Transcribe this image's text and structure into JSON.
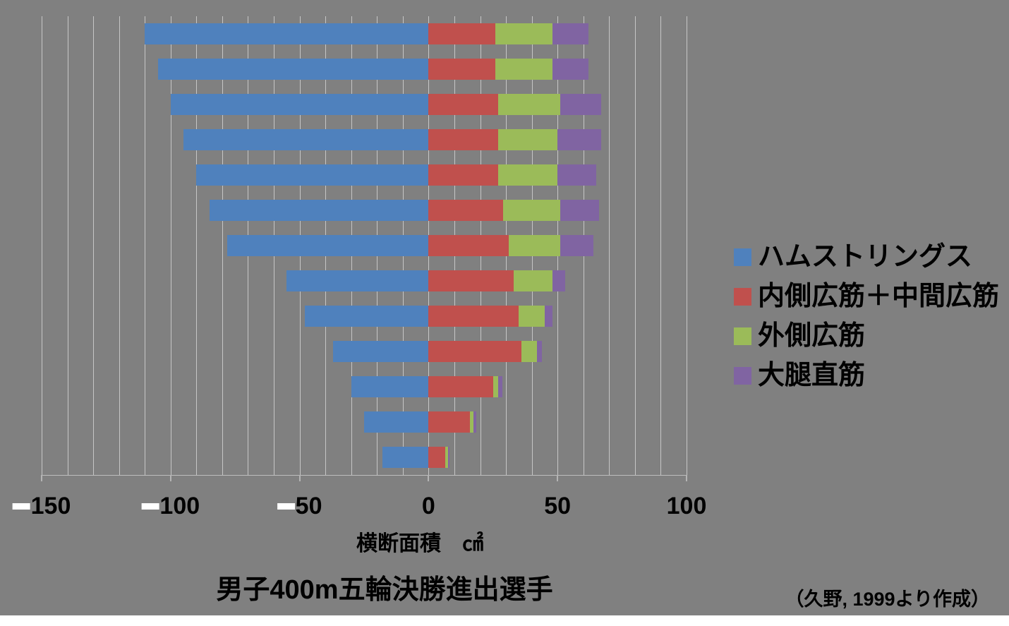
{
  "page": {
    "background_color": "#808080",
    "footer_band_color": "#ffffff",
    "gridline_color": "rgba(255,255,255,0.55)"
  },
  "chart_data": {
    "type": "bar",
    "orientation": "horizontal",
    "stacked": true,
    "diverging": true,
    "xlabel": "横断面積　㎠",
    "caption": "男子400m五輪決勝進出選手",
    "source": "（久野, 1999より作成）",
    "xlim": [
      -150,
      100
    ],
    "x_ticks": [
      -150,
      -100,
      -50,
      0,
      50,
      100
    ],
    "x_tick_labels": [
      "-150",
      "-100",
      "-50",
      "0",
      "50",
      "100"
    ],
    "gridline_step": 10,
    "grid": "on",
    "legend_position": "right",
    "n_rows": 13,
    "series": [
      {
        "name": "ハムストリングス",
        "color": "#4F81BD",
        "side": "negative",
        "values": [
          -110,
          -105,
          -100,
          -95,
          -90,
          -85,
          -78,
          -55,
          -48,
          -37,
          -30,
          -25,
          -18
        ]
      },
      {
        "name": "内側広筋＋中間広筋",
        "color": "#C0504D",
        "side": "positive",
        "values": [
          26,
          26,
          27,
          27,
          27,
          29,
          31,
          33,
          35,
          36,
          25,
          16,
          6.5
        ]
      },
      {
        "name": "外側広筋",
        "color": "#9BBB59",
        "side": "positive",
        "values": [
          22,
          22,
          24,
          23,
          23,
          22,
          20,
          15,
          10,
          6,
          2,
          1.5,
          1
        ]
      },
      {
        "name": "大腿直筋",
        "color": "#8064A2",
        "side": "positive",
        "values": [
          14,
          14,
          16,
          17,
          15,
          15,
          13,
          5,
          3,
          2,
          1.5,
          1,
          0.5
        ]
      }
    ]
  }
}
